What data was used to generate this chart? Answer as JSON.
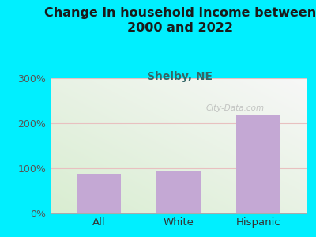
{
  "categories": [
    "All",
    "White",
    "Hispanic"
  ],
  "values": [
    88,
    93,
    218
  ],
  "bar_color": "#c4a8d4",
  "title": "Change in household income between\n2000 and 2022",
  "subtitle": "Shelby, NE",
  "subtitle_color": "#336666",
  "title_color": "#1a1a1a",
  "bg_color": "#00efff",
  "plot_bg_color_topleft": "#d8e8d0",
  "plot_bg_color_topright": "#f0f0f0",
  "plot_bg_color_bottom": "#e8f0e0",
  "ylim": [
    0,
    300
  ],
  "yticks": [
    0,
    100,
    200,
    300
  ],
  "yticklabels": [
    "0%",
    "100%",
    "200%",
    "300%"
  ],
  "grid_color": "#e8c0c0",
  "watermark": "City-Data.com",
  "title_fontsize": 11.5,
  "subtitle_fontsize": 10,
  "tick_color": "#555555"
}
